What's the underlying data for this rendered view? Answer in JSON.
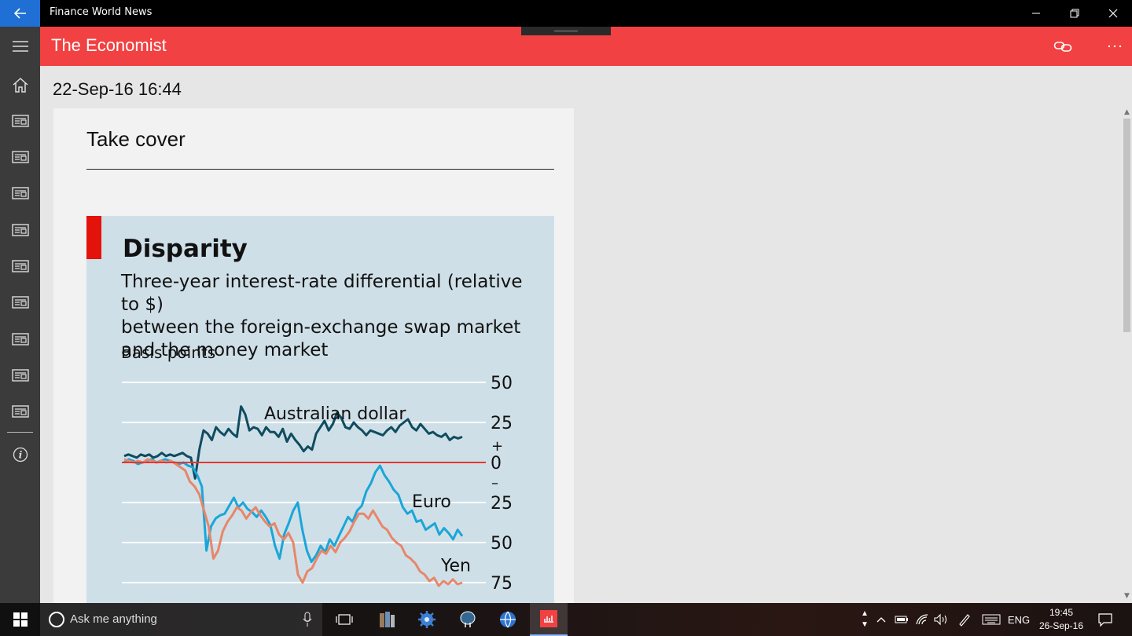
{
  "window": {
    "title": "Finance World News"
  },
  "header": {
    "title": "The Economist"
  },
  "nav": {
    "items": [
      "home-icon",
      "news-icon",
      "news-icon",
      "news-icon",
      "news-icon",
      "news-icon",
      "news-icon",
      "news-icon",
      "news-icon",
      "news-icon",
      "info-icon"
    ]
  },
  "article": {
    "date": "22-Sep-16 16:44",
    "title": "Take cover"
  },
  "figure": {
    "title": "Disparity",
    "subtitle_lines": [
      "Three-year interest-rate differential (relative to $)",
      "between the foreign-exchange swap market",
      "and the money market"
    ],
    "unit": "Basis points",
    "accent_color": "#e3120b",
    "background_color": "#cfdfe7"
  },
  "chart_data": {
    "type": "line",
    "title": "Disparity",
    "subtitle": "Three-year interest-rate differential (relative to $) between the foreign-exchange swap market and the money market",
    "ylabel": "Basis points",
    "ylim": [
      -80,
      55
    ],
    "y_ticks": [
      {
        "value": 50,
        "label": "50"
      },
      {
        "value": 25,
        "label": "25"
      },
      {
        "value": 0,
        "label": "0"
      },
      {
        "value": -25,
        "label": "25"
      },
      {
        "value": -50,
        "label": "50"
      },
      {
        "value": -75,
        "label": "75"
      }
    ],
    "sign_labels": {
      "plus": "+",
      "minus": "–"
    },
    "grid": true,
    "zero_line_color": "#e5372f",
    "series": [
      {
        "name": "Australian dollar",
        "color": "#0f4c5f",
        "values": [
          4,
          5,
          4,
          3,
          5,
          4,
          5,
          3,
          4,
          6,
          4,
          5,
          4,
          5,
          6,
          4,
          3,
          -10,
          8,
          20,
          18,
          14,
          22,
          19,
          17,
          21,
          18,
          16,
          35,
          30,
          20,
          22,
          21,
          17,
          22,
          19,
          19,
          16,
          21,
          13,
          18,
          14,
          11,
          7,
          10,
          8,
          18,
          22,
          26,
          20,
          24,
          31,
          28,
          22,
          21,
          25,
          22,
          20,
          17,
          20,
          19,
          18,
          17,
          20,
          22,
          19,
          23,
          25,
          27,
          22,
          20,
          24,
          21,
          18,
          19,
          17,
          16,
          18,
          14,
          16,
          15,
          16
        ]
      },
      {
        "name": "Euro",
        "color": "#1aa6d8",
        "values": [
          0,
          2,
          1,
          -1,
          0,
          1,
          2,
          0,
          1,
          2,
          1,
          0,
          -1,
          0,
          -2,
          -3,
          -8,
          -15,
          -55,
          -40,
          -35,
          -33,
          -32,
          -27,
          -22,
          -28,
          -25,
          -29,
          -31,
          -34,
          -30,
          -34,
          -39,
          -52,
          -60,
          -45,
          -38,
          -30,
          -25,
          -42,
          -55,
          -62,
          -58,
          -52,
          -56,
          -48,
          -52,
          -46,
          -40,
          -34,
          -37,
          -30,
          -27,
          -18,
          -13,
          -6,
          -2,
          -8,
          -12,
          -17,
          -20,
          -28,
          -32,
          -30,
          -37,
          -36,
          -42,
          -40,
          -38,
          -45,
          -41,
          -44,
          -48,
          -42,
          -46
        ]
      },
      {
        "name": "Yen",
        "color": "#e8866a",
        "values": [
          2,
          1,
          0,
          1,
          0,
          2,
          1,
          0,
          1,
          0,
          1,
          -1,
          -3,
          -5,
          -12,
          -15,
          -20,
          -30,
          -40,
          -60,
          -55,
          -43,
          -37,
          -33,
          -28,
          -30,
          -35,
          -31,
          -28,
          -33,
          -37,
          -40,
          -38,
          -45,
          -48,
          -44,
          -50,
          -70,
          -75,
          -68,
          -66,
          -60,
          -55,
          -57,
          -52,
          -56,
          -50,
          -47,
          -43,
          -37,
          -32,
          -32,
          -35,
          -30,
          -35,
          -40,
          -42,
          -47,
          -50,
          -52,
          -58,
          -60,
          -63,
          -68,
          -70,
          -74,
          -72,
          -77,
          -74,
          -76,
          -73,
          -76,
          -75
        ]
      }
    ],
    "annotations": [
      {
        "text": "Australian dollar",
        "series": "Australian dollar"
      },
      {
        "text": "Euro",
        "series": "Euro"
      },
      {
        "text": "Yen",
        "series": "Yen"
      }
    ]
  },
  "taskbar": {
    "search_placeholder": "Ask me anything",
    "language": "ENG",
    "time": "19:45",
    "date": "26-Sep-16"
  }
}
